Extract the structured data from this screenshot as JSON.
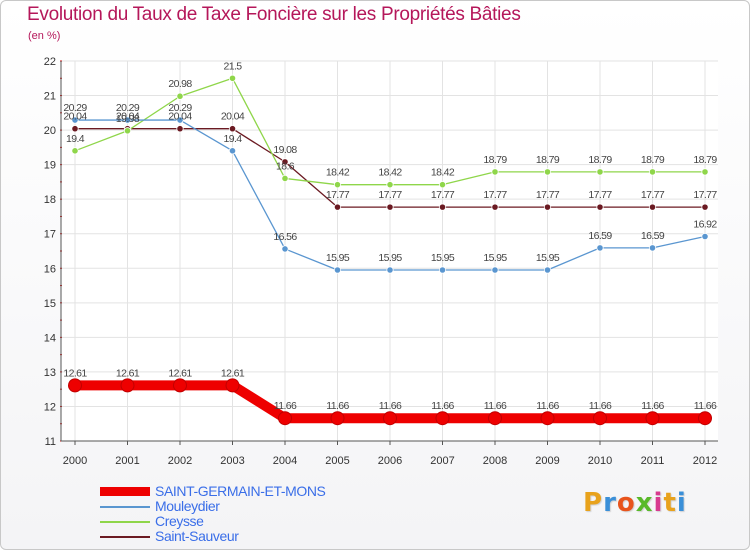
{
  "title": "Evolution du Taux de Taxe Foncière sur les Propriétés Bâties",
  "subtitle": "(en %)",
  "logo": {
    "text": "Proxiti",
    "colors": [
      "#e8a21c",
      "#3a8fd8",
      "#e8541c",
      "#59b92a",
      "#d83a8f",
      "#e8a21c",
      "#3a8fd8"
    ]
  },
  "chart_data": {
    "type": "line",
    "title": "Evolution du Taux de Taxe Foncière sur les Propriétés Bâties",
    "ylabel": "(en %)",
    "xlabel": "",
    "ylim": [
      11,
      22
    ],
    "yticks": [
      11,
      12,
      13,
      14,
      15,
      16,
      17,
      18,
      19,
      20,
      21,
      22
    ],
    "categories": [
      "2000",
      "2001",
      "2002",
      "2003",
      "2004",
      "2005",
      "2006",
      "2007",
      "2008",
      "2009",
      "2010",
      "2011",
      "2012"
    ],
    "series": [
      {
        "name": "Saint-Sauveur",
        "color": "#6b1a22",
        "values": [
          20.04,
          20.04,
          20.04,
          20.04,
          19.08,
          17.77,
          17.77,
          17.77,
          17.77,
          17.77,
          17.77,
          17.77,
          17.77
        ],
        "labels": [
          "20.04",
          "20.04",
          "20.04",
          "20.04",
          "19.08",
          "17.77",
          "17.77",
          "17.77",
          "17.77",
          "17.77",
          "17.77",
          "17.77",
          "17.77"
        ]
      },
      {
        "name": "Creysse",
        "color": "#8fd64a",
        "values": [
          19.4,
          19.98,
          20.98,
          21.5,
          18.6,
          18.42,
          18.42,
          18.42,
          18.79,
          18.79,
          18.79,
          18.79,
          18.79
        ],
        "labels": [
          "19.4",
          "19.98",
          "20.98",
          "21.5",
          "18.6",
          "18.42",
          "18.42",
          "18.42",
          "18.79",
          "18.79",
          "18.79",
          "18.79",
          "18.79"
        ]
      },
      {
        "name": "Mouleydier",
        "color": "#5a96d0",
        "values": [
          20.29,
          20.29,
          20.29,
          19.4,
          16.56,
          15.95,
          15.95,
          15.95,
          15.95,
          15.95,
          16.59,
          16.59,
          16.92
        ],
        "labels": [
          "20.29",
          "20.29",
          "20.29",
          "19.4",
          "16.56",
          "15.95",
          "15.95",
          "15.95",
          "15.95",
          "15.95",
          "16.59",
          "16.59",
          "16.92"
        ]
      },
      {
        "name": "SAINT-GERMAIN-ET-MONS",
        "color": "#ee0000",
        "values": [
          12.61,
          12.61,
          12.61,
          12.61,
          11.66,
          11.66,
          11.66,
          11.66,
          11.66,
          11.66,
          11.66,
          11.66,
          11.66
        ],
        "labels": [
          "12.61",
          "12.61",
          "12.61",
          "12.61",
          "11.66",
          "11.66",
          "11.66",
          "11.66",
          "11.66",
          "11.66",
          "11.66",
          "11.66",
          "11.66"
        ]
      }
    ],
    "legend": {
      "placement": "bottom-left",
      "entries": [
        {
          "name": "SAINT-GERMAIN-ET-MONS",
          "color": "#ee0000"
        },
        {
          "name": "Mouleydier",
          "color": "#5a96d0"
        },
        {
          "name": "Creysse",
          "color": "#8fd64a"
        },
        {
          "name": "Saint-Sauveur",
          "color": "#6b1a22"
        }
      ]
    }
  }
}
